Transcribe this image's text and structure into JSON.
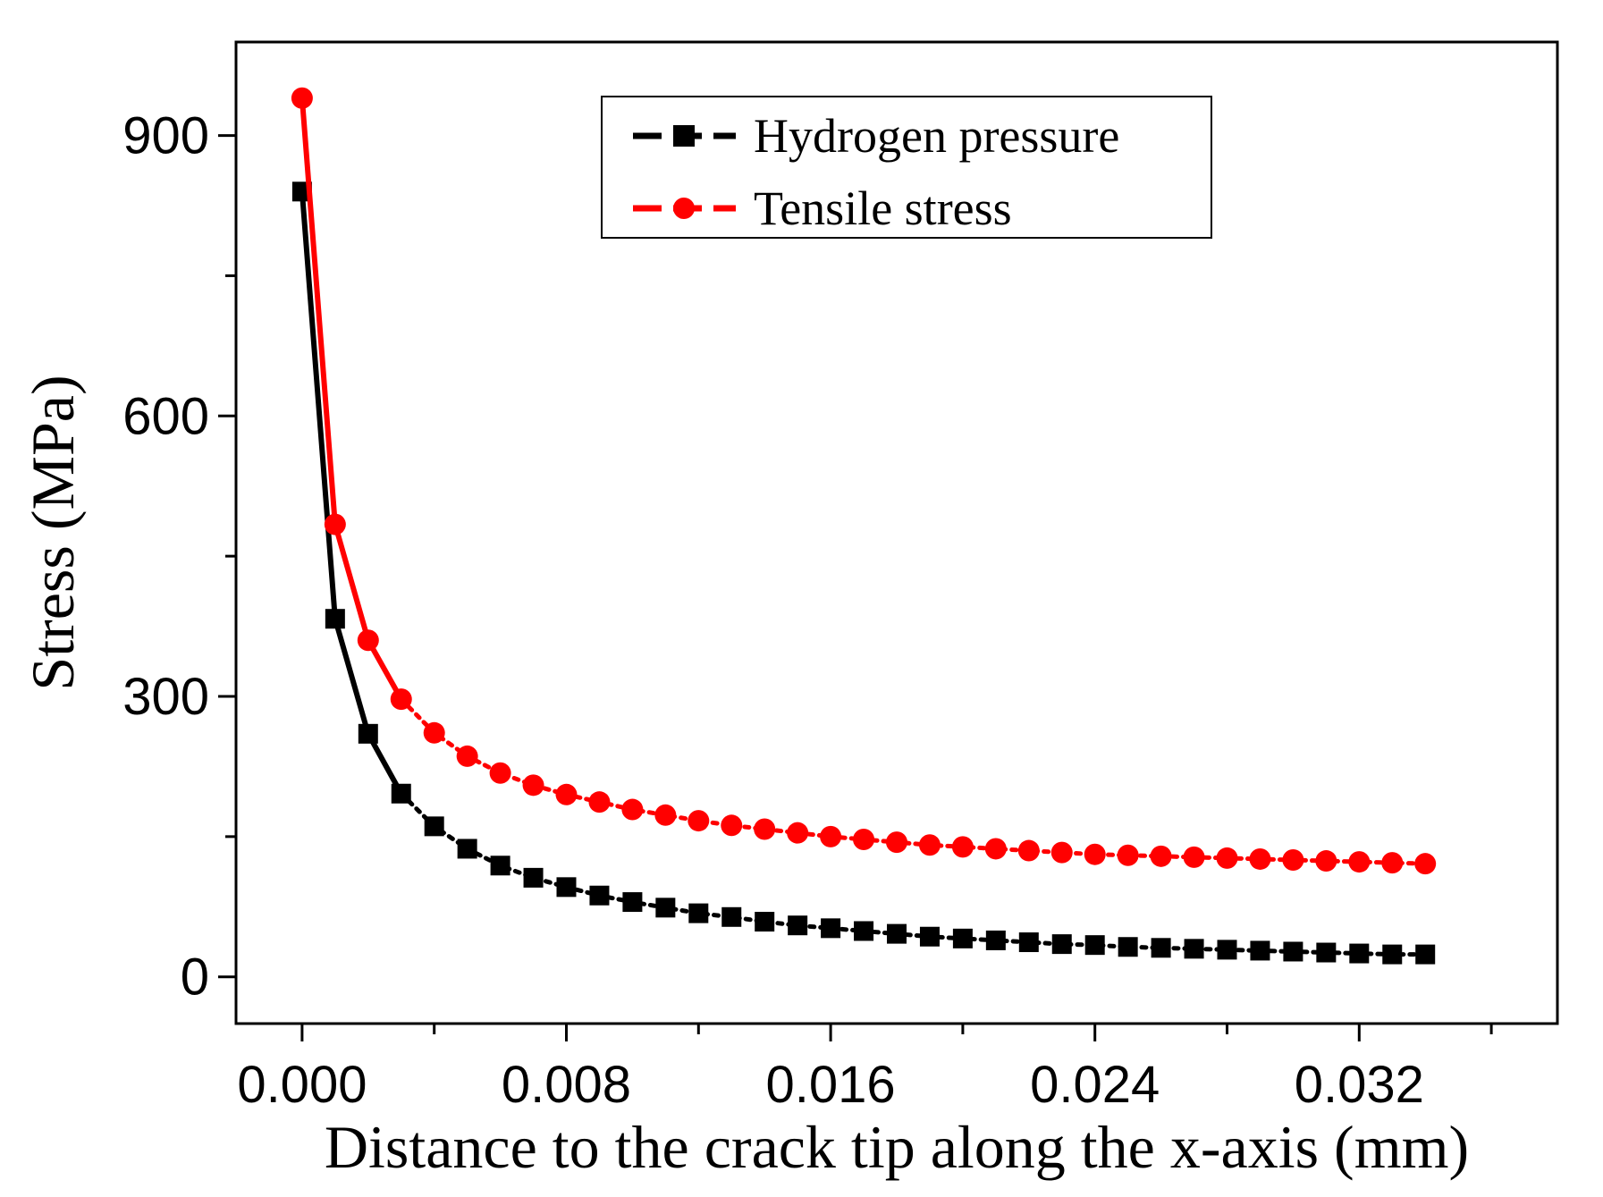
{
  "chart_data": {
    "type": "line",
    "title": "",
    "xlabel": "Distance to the crack tip along the x-axis (mm)",
    "ylabel": "Stress (MPa)",
    "xlim": [
      -0.002,
      0.038
    ],
    "ylim": [
      -50,
      1000
    ],
    "xticks": [
      0.0,
      0.008,
      0.016,
      0.024,
      0.032
    ],
    "xtick_labels": [
      "0.000",
      "0.008",
      "0.016",
      "0.024",
      "0.032"
    ],
    "xminor": [
      0.004,
      0.012,
      0.02,
      0.028,
      0.036
    ],
    "yticks": [
      0,
      300,
      600,
      900
    ],
    "ytick_labels": [
      "0",
      "300",
      "600",
      "900"
    ],
    "yminor": [
      150,
      450,
      750
    ],
    "grid": false,
    "legend_position": "top-center",
    "x": [
      0.0,
      0.001,
      0.002,
      0.003,
      0.004,
      0.005,
      0.006,
      0.007,
      0.008,
      0.009,
      0.01,
      0.011,
      0.012,
      0.013,
      0.014,
      0.015,
      0.016,
      0.017,
      0.018,
      0.019,
      0.02,
      0.021,
      0.022,
      0.023,
      0.024,
      0.025,
      0.026,
      0.027,
      0.028,
      0.029,
      0.03,
      0.031,
      0.032,
      0.033,
      0.034
    ],
    "series": [
      {
        "name": "Hydrogen pressure",
        "color": "#000000",
        "marker": "square",
        "values": [
          840,
          383,
          260,
          196,
          161,
          137,
          119,
          106,
          96,
          87,
          80,
          74,
          68,
          64,
          59,
          55,
          52,
          49,
          46,
          43,
          41,
          39,
          37,
          35,
          34,
          32,
          31,
          30,
          29,
          28,
          27,
          26,
          25,
          24,
          24
        ]
      },
      {
        "name": "Tensile stress",
        "color": "#ff0000",
        "marker": "circle",
        "values": [
          940,
          484,
          360,
          297,
          261,
          236,
          218,
          205,
          195,
          187,
          179,
          173,
          167,
          162,
          158,
          154,
          150,
          147,
          144,
          141,
          139,
          137,
          135,
          133,
          131,
          130,
          129,
          128,
          127,
          126,
          125,
          124,
          123,
          122,
          121
        ]
      }
    ]
  }
}
